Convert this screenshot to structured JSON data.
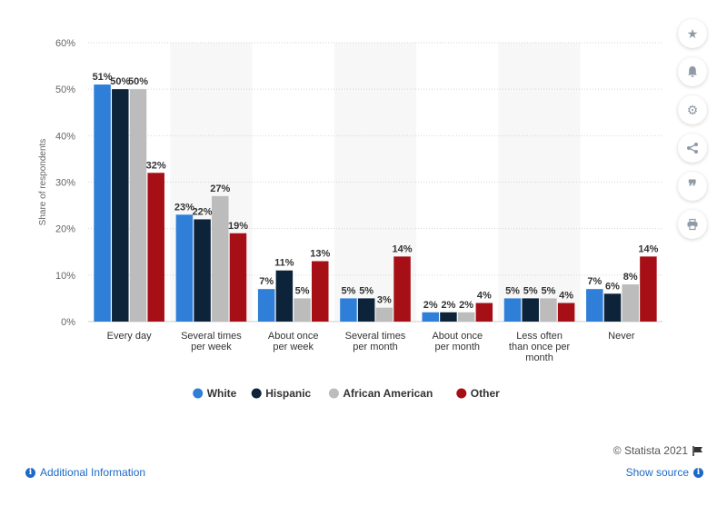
{
  "chart_data": {
    "type": "bar",
    "ylabel": "Share of respondents",
    "ylim": [
      0,
      60
    ],
    "yticks": [
      "0%",
      "10%",
      "20%",
      "30%",
      "40%",
      "50%",
      "60%"
    ],
    "categories": [
      "Every day",
      "Several times per week",
      "About once per week",
      "Several times per month",
      "About once per month",
      "Less often than once per month",
      "Never"
    ],
    "category_lines": [
      [
        "Every day"
      ],
      [
        "Several times",
        "per week"
      ],
      [
        "About once",
        "per week"
      ],
      [
        "Several times",
        "per month"
      ],
      [
        "About once",
        "per month"
      ],
      [
        "Less often",
        "than once per",
        "month"
      ],
      [
        "Never"
      ]
    ],
    "series": [
      {
        "name": "White",
        "color": "#2f7ed8",
        "values": [
          51,
          23,
          7,
          5,
          2,
          5,
          7
        ]
      },
      {
        "name": "Hispanic",
        "color": "#0d233a",
        "values": [
          50,
          22,
          11,
          5,
          2,
          5,
          6
        ]
      },
      {
        "name": "African American",
        "color": "#bcbcbc",
        "values": [
          50,
          27,
          5,
          3,
          2,
          5,
          8
        ]
      },
      {
        "name": "Other",
        "color": "#a50f15",
        "values": [
          32,
          19,
          13,
          14,
          4,
          4,
          14
        ]
      }
    ],
    "value_suffix": "%",
    "grid": true,
    "legend_position": "bottom"
  },
  "footer": {
    "copyright": "© Statista 2021",
    "additional_info": "Additional Information",
    "show_source": "Show source"
  },
  "sidebar_icons": [
    "star-icon",
    "bell-icon",
    "gear-icon",
    "share-icon",
    "quote-icon",
    "print-icon"
  ]
}
